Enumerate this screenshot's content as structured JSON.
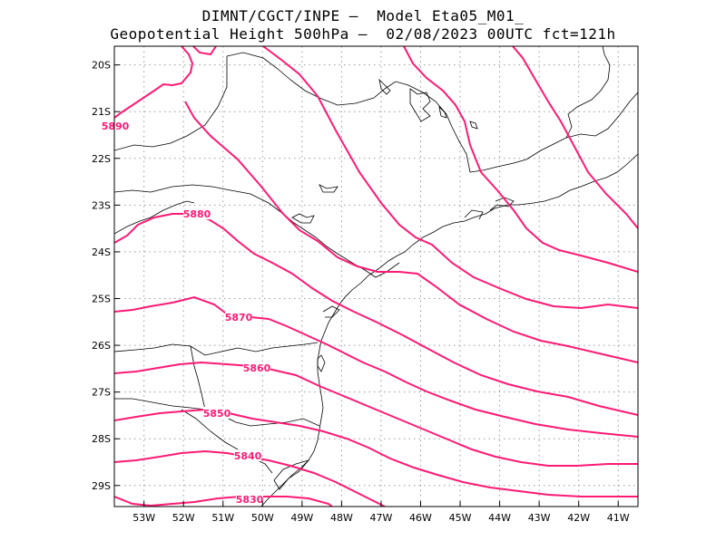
{
  "title": {
    "line1": "DIMNT/CGCT/INPE –  Model Eta05_M01_",
    "line2": "Geopotential Height 500hPa –  02/08/2023 00UTC fct=121h"
  },
  "map": {
    "lon_range": [
      -53.75,
      -40.5
    ],
    "lat_range": [
      -29.45,
      -19.6
    ],
    "grid": true,
    "contour_color": "#ff1a75",
    "coast_color": "#000000",
    "lon_labels": [
      "53W",
      "52W",
      "51W",
      "50W",
      "49W",
      "48W",
      "47W",
      "46W",
      "45W",
      "44W",
      "43W",
      "42W",
      "41W"
    ],
    "lat_labels": [
      "20S",
      "21S",
      "22S",
      "23S",
      "24S",
      "25S",
      "26S",
      "27S",
      "28S",
      "29S"
    ],
    "contour_labels": [
      "5890",
      "5880",
      "5870",
      "5860",
      "5850",
      "5840",
      "5830"
    ]
  }
}
